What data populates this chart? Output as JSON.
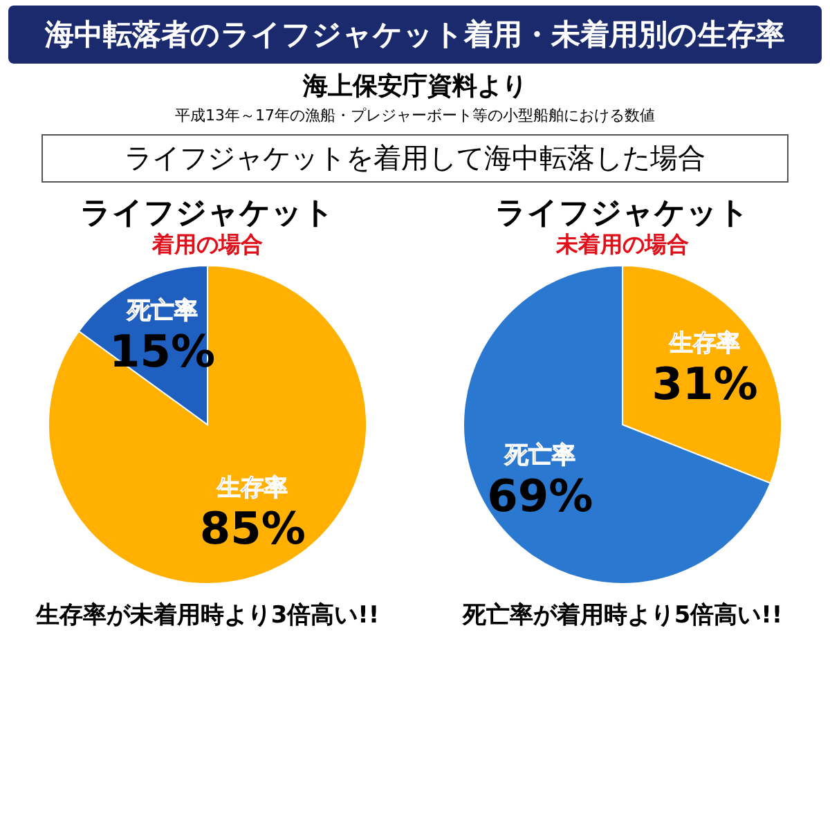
{
  "chart_data": [
    {
      "type": "pie",
      "title": "ライフジャケット",
      "subtitle": "着用の場合",
      "categories": [
        "生存率",
        "死亡率"
      ],
      "values": [
        85,
        15
      ],
      "value_labels": [
        "85%",
        "15%"
      ],
      "colors": [
        "#ffb000",
        "#1f5fbf"
      ],
      "annotations": [
        "海中転落者のライフジャケット着用・未着用別の生存率",
        "海上保安庁資料より",
        "平成13年～17年の漁船・プレジャーボート等の小型船舶における数値",
        "ライフジャケットを着用して海中転落した場合",
        "生存率が未着用時より3倍高い!!"
      ]
    },
    {
      "type": "pie",
      "title": "ライフジャケット",
      "subtitle": "未着用の場合",
      "categories": [
        "生存率",
        "死亡率"
      ],
      "values": [
        31,
        69
      ],
      "value_labels": [
        "31%",
        "69%"
      ],
      "colors": [
        "#ffb000",
        "#2a78d0"
      ],
      "annotations": [
        "死亡率が着用時より5倍高い!!"
      ]
    }
  ]
}
